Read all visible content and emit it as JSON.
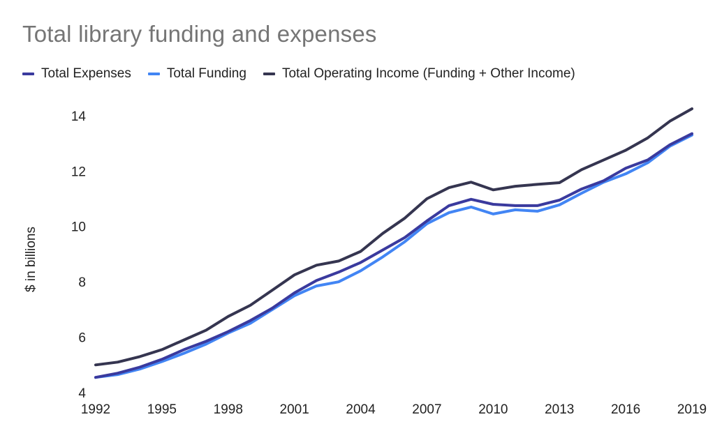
{
  "chart_data": {
    "type": "line",
    "title": "Total library funding and expenses",
    "ylabel": "$ in billions",
    "xlabel": "",
    "ylim": [
      4,
      14.4
    ],
    "yticks": [
      4,
      6,
      8,
      10,
      12,
      14
    ],
    "xticks": [
      1992,
      1995,
      1998,
      2001,
      2004,
      2007,
      2010,
      2013,
      2016,
      2019
    ],
    "legend_position": "top-left",
    "grid": false,
    "x": [
      1992,
      1993,
      1994,
      1995,
      1996,
      1997,
      1998,
      1999,
      2000,
      2001,
      2002,
      2003,
      2004,
      2005,
      2006,
      2007,
      2008,
      2009,
      2010,
      2011,
      2012,
      2013,
      2014,
      2015,
      2016,
      2017,
      2018,
      2019
    ],
    "series": [
      {
        "name": "Total Expenses",
        "color": "#3a3a9e",
        "values": [
          4.55,
          4.7,
          4.92,
          5.2,
          5.55,
          5.85,
          6.2,
          6.6,
          7.05,
          7.6,
          8.05,
          8.35,
          8.7,
          9.15,
          9.6,
          10.2,
          10.75,
          10.98,
          10.8,
          10.75,
          10.75,
          10.95,
          11.35,
          11.65,
          12.1,
          12.4,
          12.95,
          13.35
        ]
      },
      {
        "name": "Total Funding",
        "color": "#4285f4",
        "values": [
          4.55,
          4.65,
          4.85,
          5.12,
          5.42,
          5.75,
          6.15,
          6.5,
          7.0,
          7.5,
          7.85,
          8.0,
          8.4,
          8.9,
          9.45,
          10.1,
          10.5,
          10.7,
          10.45,
          10.6,
          10.55,
          10.78,
          11.2,
          11.6,
          11.9,
          12.3,
          12.9,
          13.3
        ]
      },
      {
        "name": "Total Operating Income (Funding + Other Income)",
        "color": "#353550",
        "values": [
          5.0,
          5.1,
          5.3,
          5.55,
          5.9,
          6.25,
          6.75,
          7.15,
          7.7,
          8.25,
          8.6,
          8.75,
          9.1,
          9.75,
          10.3,
          11.0,
          11.4,
          11.6,
          11.32,
          11.45,
          11.52,
          11.58,
          12.05,
          12.4,
          12.75,
          13.2,
          13.8,
          14.25
        ]
      }
    ]
  }
}
